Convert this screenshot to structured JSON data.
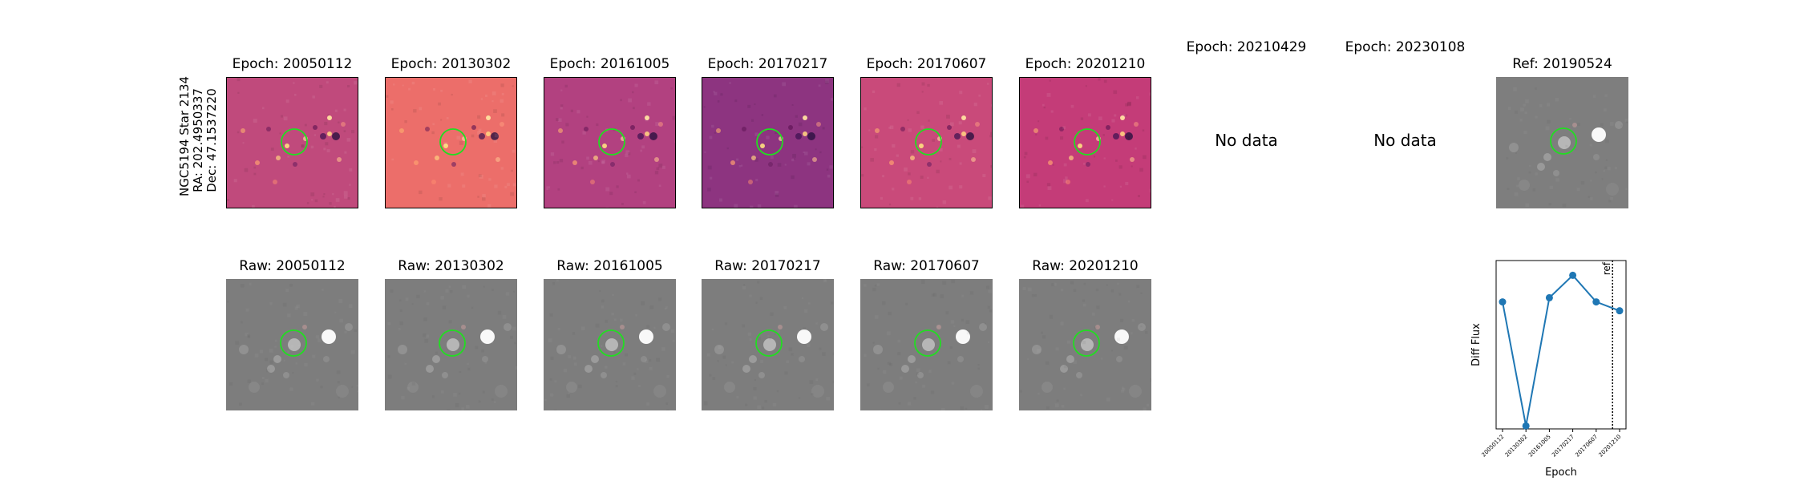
{
  "star_label": {
    "line1": "NGC5194 Star 2134",
    "line2": "RA: 202.4950337",
    "line3": "Dec: 47.1537220"
  },
  "diff_row": [
    {
      "title": "Epoch: 20050112",
      "has_data": true,
      "base": "#c04a7c"
    },
    {
      "title": "Epoch: 20130302",
      "has_data": true,
      "base": "#ec6e6a"
    },
    {
      "title": "Epoch: 20161005",
      "has_data": true,
      "base": "#b24180"
    },
    {
      "title": "Epoch: 20170217",
      "has_data": true,
      "base": "#8d3480"
    },
    {
      "title": "Epoch: 20170607",
      "has_data": true,
      "base": "#c94a7a"
    },
    {
      "title": "Epoch: 20201210",
      "has_data": true,
      "base": "#c43c78"
    },
    {
      "title": "Epoch: 20210429",
      "has_data": false,
      "no_data_text": "No data"
    },
    {
      "title": "Epoch: 20230108",
      "has_data": false,
      "no_data_text": "No data"
    },
    {
      "title": "Ref: 20190524",
      "has_data": true,
      "base": "#7e7e7e"
    }
  ],
  "raw_row": [
    {
      "title": "Raw: 20050112"
    },
    {
      "title": "Raw: 20130302"
    },
    {
      "title": "Raw: 20161005"
    },
    {
      "title": "Raw: 20170217"
    },
    {
      "title": "Raw: 20170607"
    },
    {
      "title": "Raw: 20201210"
    }
  ],
  "colors": {
    "circle": "#22dd22",
    "line": "#1f77b4",
    "raw_bg": "#7d7d7d"
  },
  "chart_data": {
    "type": "line",
    "categories": [
      "20050112",
      "20130302",
      "20161005",
      "20170217",
      "20170607",
      "20201210"
    ],
    "series": [
      {
        "values": [
          0.65,
          -1.45,
          0.72,
          1.1,
          0.65,
          0.5
        ]
      }
    ],
    "ylabel": "Diff Flux",
    "xlabel": "Epoch",
    "ref_line_label": "ref",
    "ref_position": 4.7,
    "ylim": [
      -1.5,
      1.35
    ]
  }
}
